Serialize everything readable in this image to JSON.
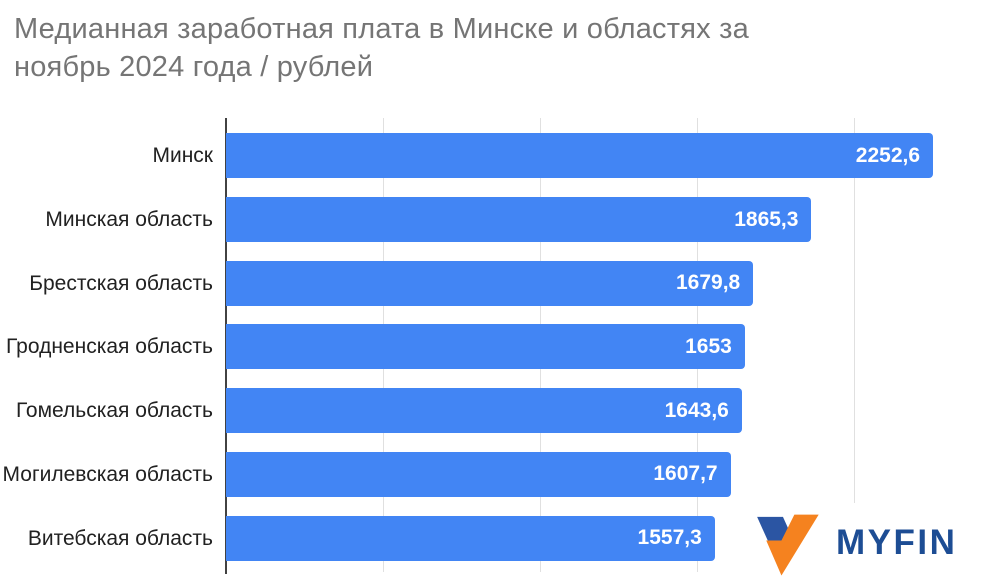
{
  "title": {
    "line1": "Медианная заработная плата в Минске и областях за",
    "line2": "ноябрь 2024 года / рублей",
    "color": "#757575"
  },
  "chart_data": {
    "type": "bar",
    "orientation": "horizontal",
    "title": "Медианная заработная плата в Минске и областях за ноябрь 2024 года / рублей",
    "unit": "рублей",
    "categories": [
      "Минск",
      "Минская область",
      "Брестская область",
      "Гродненская область",
      "Гомельская область",
      "Могилевская область",
      "Витебская область"
    ],
    "values": [
      2252.6,
      1865.3,
      1679.8,
      1653,
      1643.6,
      1607.7,
      1557.3
    ],
    "value_labels": [
      "2252,6",
      "1865,3",
      "1679,8",
      "1653",
      "1643,6",
      "1607,7",
      "1557,3"
    ],
    "bar_color": "#4285F4",
    "value_label_color": "#ffffff",
    "axis_color": "#424242",
    "gridline_color": "#e0e0e0",
    "gridline_values": [
      500,
      1000,
      1500,
      2000
    ],
    "xlim": [
      0,
      2466
    ],
    "grid": true,
    "legend": "none"
  },
  "logo": {
    "text": "MYFIN",
    "text_color": "#1d4d94",
    "mark_blue": "#2b55a3",
    "mark_orange": "#f5821f"
  }
}
